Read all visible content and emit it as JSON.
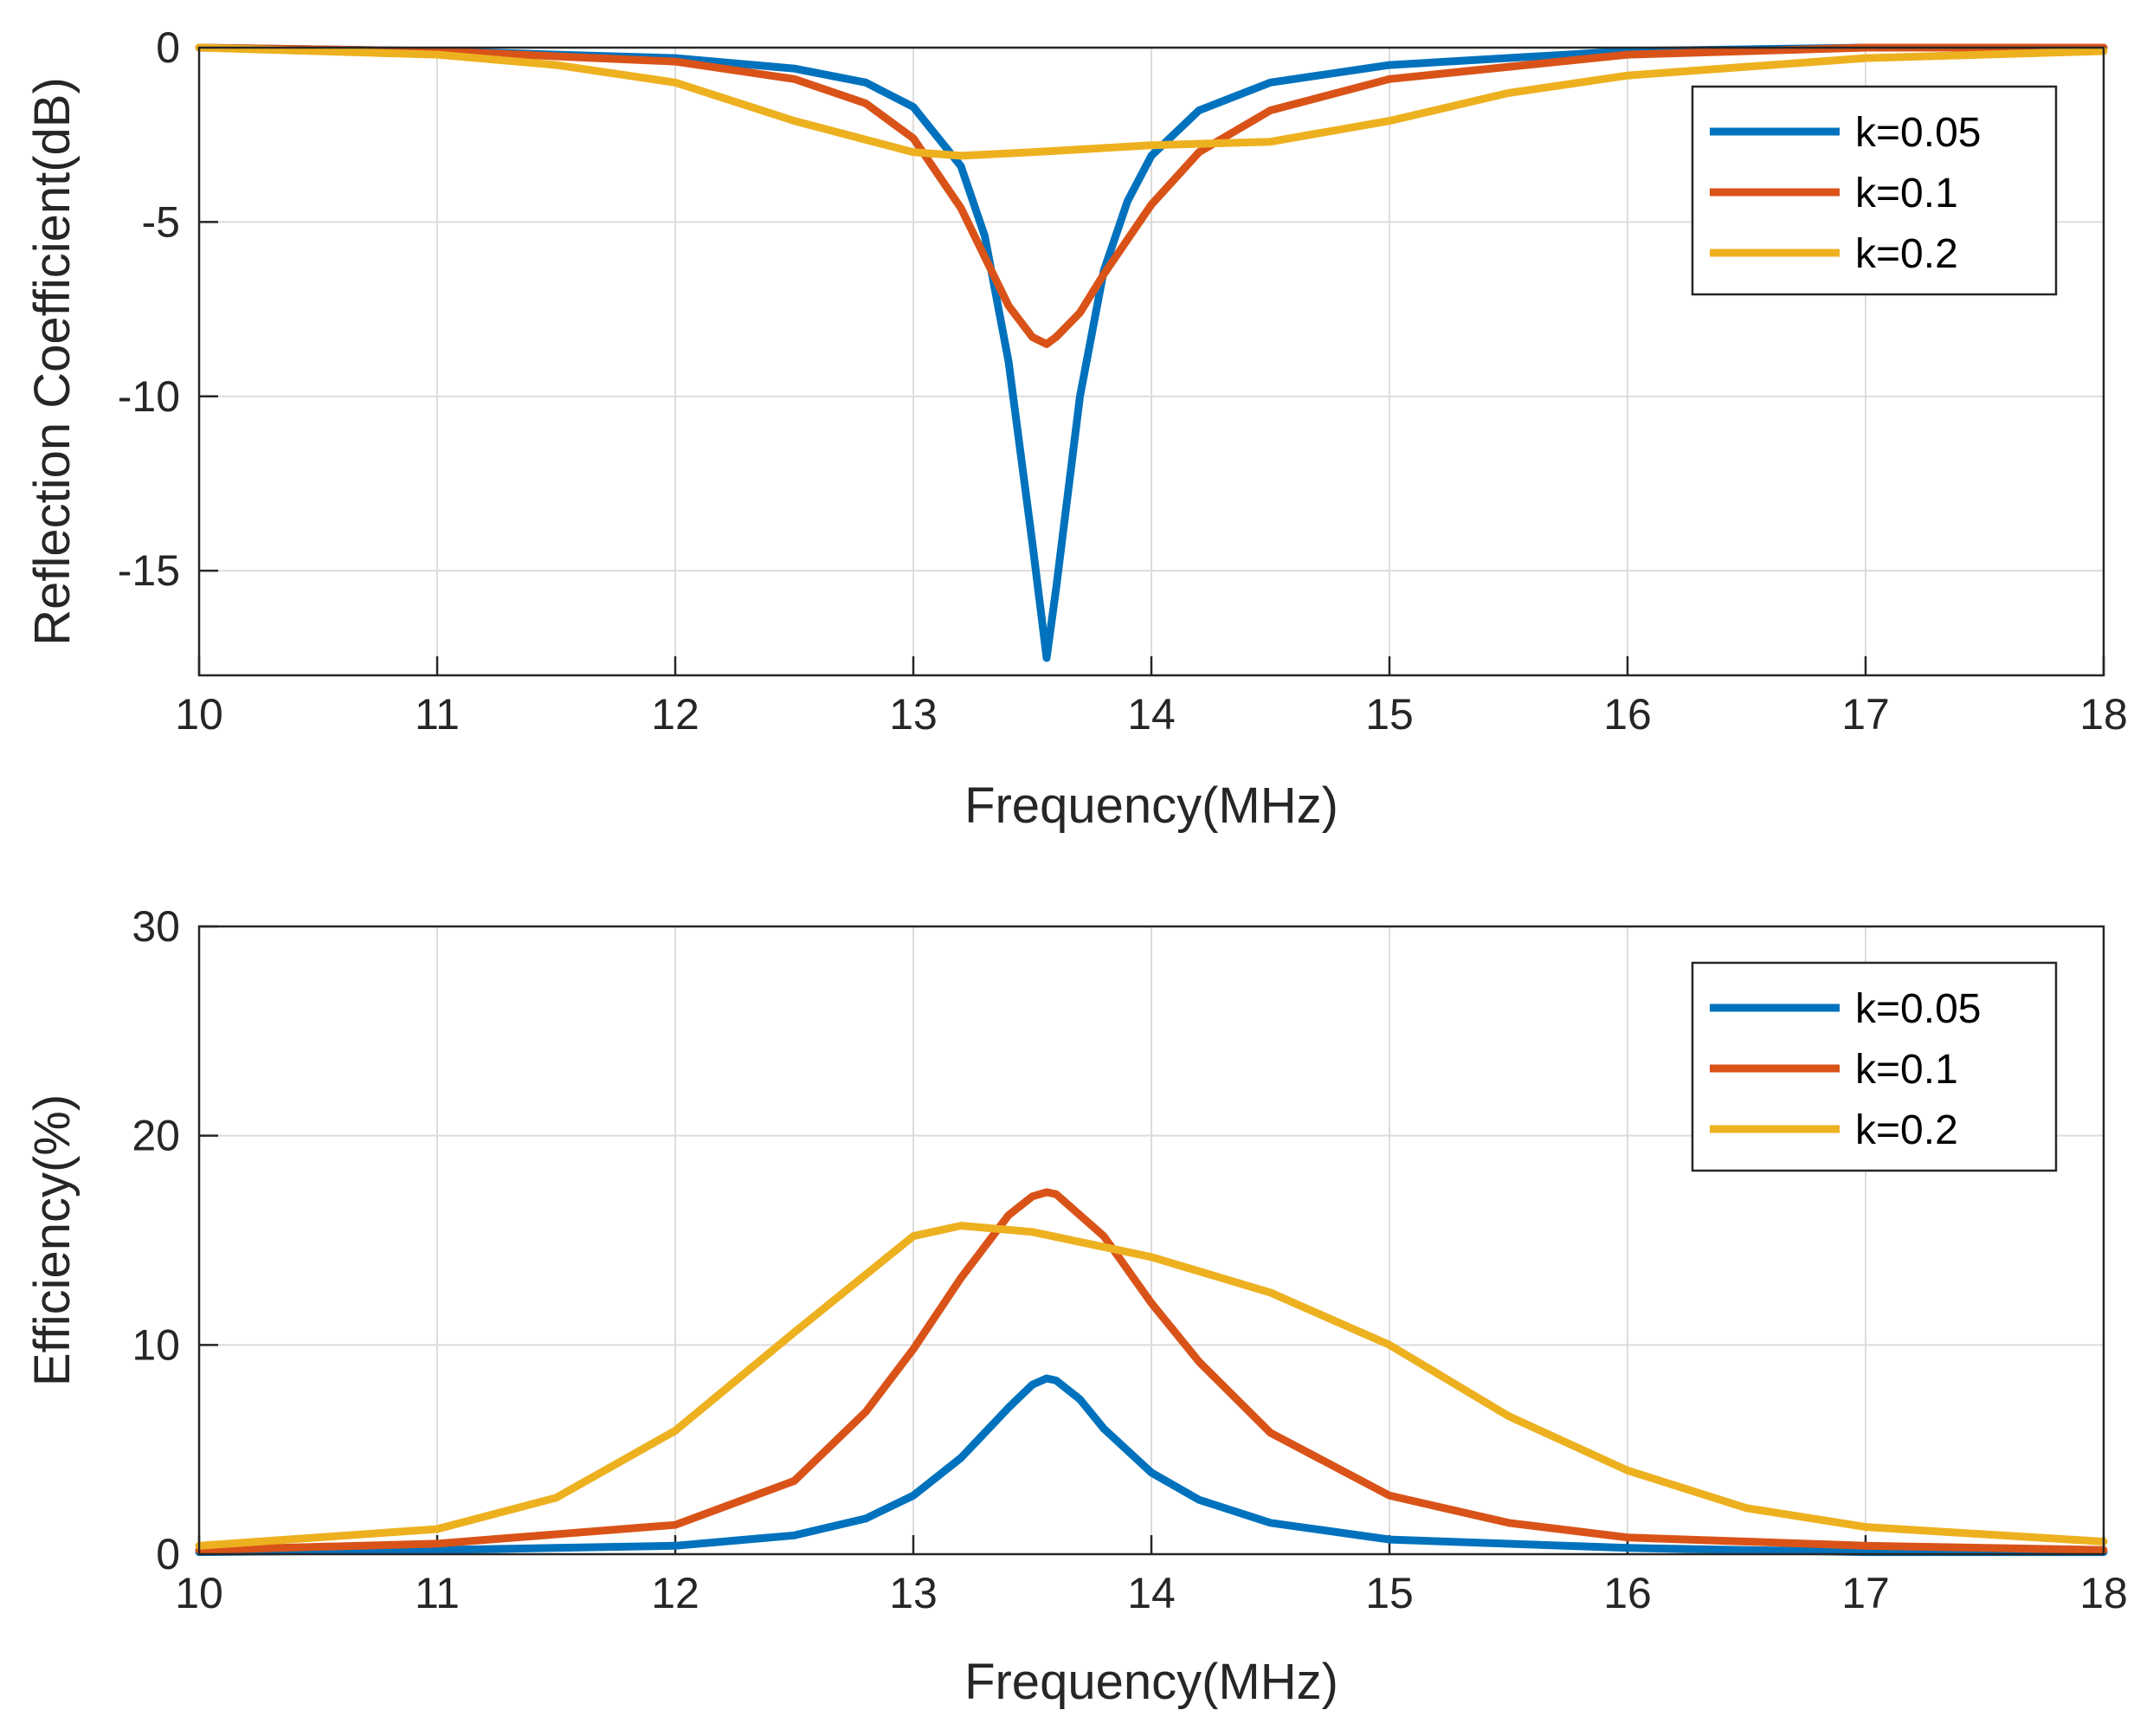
{
  "chart_data": [
    {
      "type": "line",
      "xlabel": "Frequency(MHz)",
      "ylabel": "Reflection Coefficient(dB)",
      "xlim": [
        10,
        18
      ],
      "ylim": [
        -18,
        0
      ],
      "xticks": [
        "10",
        "11",
        "12",
        "13",
        "14",
        "15",
        "16",
        "17",
        "18"
      ],
      "yticks": [
        "0",
        "-5",
        "-10",
        "-15"
      ],
      "ytick_values": [
        0,
        -5,
        -10,
        -15
      ],
      "grid": true,
      "legend_position": "top-right",
      "series": [
        {
          "name": "k=0.05",
          "color": "#0072BD",
          "x": [
            10,
            11,
            12,
            12.5,
            12.8,
            13.0,
            13.2,
            13.3,
            13.4,
            13.5,
            13.56,
            13.6,
            13.7,
            13.8,
            13.9,
            14.0,
            14.2,
            14.5,
            15,
            16,
            17,
            18
          ],
          "y": [
            0,
            -0.1,
            -0.3,
            -0.6,
            -1.0,
            -1.7,
            -3.4,
            -5.4,
            -9.0,
            -14.2,
            -17.5,
            -15.5,
            -10.0,
            -6.4,
            -4.4,
            -3.1,
            -1.8,
            -1.0,
            -0.5,
            -0.1,
            0,
            0
          ]
        },
        {
          "name": "k=0.1",
          "color": "#D95319",
          "x": [
            10,
            11,
            12,
            12.5,
            12.8,
            13.0,
            13.2,
            13.3,
            13.4,
            13.5,
            13.56,
            13.6,
            13.7,
            13.8,
            13.9,
            14.0,
            14.2,
            14.5,
            15,
            16,
            17,
            18
          ],
          "y": [
            0,
            -0.1,
            -0.4,
            -0.9,
            -1.6,
            -2.6,
            -4.6,
            -6.0,
            -7.4,
            -8.3,
            -8.5,
            -8.3,
            -7.6,
            -6.5,
            -5.5,
            -4.5,
            -3.0,
            -1.8,
            -0.9,
            -0.2,
            0,
            0
          ]
        },
        {
          "name": "k=0.2",
          "color": "#EDB120",
          "x": [
            10,
            11,
            11.5,
            12,
            12.5,
            13.0,
            13.2,
            13.5,
            14.0,
            14.5,
            15.0,
            15.5,
            16,
            17,
            18
          ],
          "y": [
            0,
            -0.2,
            -0.5,
            -1.0,
            -2.1,
            -3.0,
            -3.1,
            -3.0,
            -2.8,
            -2.7,
            -2.1,
            -1.3,
            -0.8,
            -0.3,
            -0.1
          ]
        }
      ]
    },
    {
      "type": "line",
      "xlabel": "Frequency(MHz)",
      "ylabel": "Efficiency(%)",
      "xlim": [
        10,
        18
      ],
      "ylim": [
        0,
        30
      ],
      "xticks": [
        "10",
        "11",
        "12",
        "13",
        "14",
        "15",
        "16",
        "17",
        "18"
      ],
      "yticks": [
        "0",
        "10",
        "20",
        "30"
      ],
      "ytick_values": [
        0,
        10,
        20,
        30
      ],
      "grid": true,
      "legend_position": "top-right",
      "series": [
        {
          "name": "k=0.05",
          "color": "#0072BD",
          "x": [
            10,
            11,
            12,
            12.5,
            12.8,
            13.0,
            13.2,
            13.4,
            13.5,
            13.56,
            13.6,
            13.7,
            13.8,
            14.0,
            14.2,
            14.5,
            15,
            16,
            17,
            18
          ],
          "y": [
            0.1,
            0.2,
            0.4,
            0.9,
            1.7,
            2.8,
            4.6,
            7.0,
            8.1,
            8.4,
            8.3,
            7.4,
            6.0,
            3.9,
            2.6,
            1.5,
            0.7,
            0.3,
            0.1,
            0.1
          ]
        },
        {
          "name": "k=0.1",
          "color": "#D95319",
          "x": [
            10,
            11,
            12,
            12.5,
            12.8,
            13.0,
            13.2,
            13.4,
            13.5,
            13.56,
            13.6,
            13.8,
            14.0,
            14.2,
            14.5,
            15,
            15.5,
            16,
            17,
            18
          ],
          "y": [
            0.2,
            0.5,
            1.4,
            3.5,
            6.8,
            9.8,
            13.2,
            16.2,
            17.1,
            17.3,
            17.2,
            15.2,
            12.0,
            9.2,
            5.8,
            2.8,
            1.5,
            0.8,
            0.4,
            0.2
          ]
        },
        {
          "name": "k=0.2",
          "color": "#EDB120",
          "x": [
            10,
            11,
            11.5,
            12,
            12.5,
            13.0,
            13.2,
            13.5,
            14.0,
            14.5,
            15.0,
            15.5,
            16,
            16.5,
            17,
            18
          ],
          "y": [
            0.4,
            1.2,
            2.7,
            5.9,
            10.6,
            15.2,
            15.7,
            15.4,
            14.2,
            12.5,
            10.0,
            6.6,
            4.0,
            2.2,
            1.3,
            0.6
          ]
        }
      ]
    }
  ]
}
